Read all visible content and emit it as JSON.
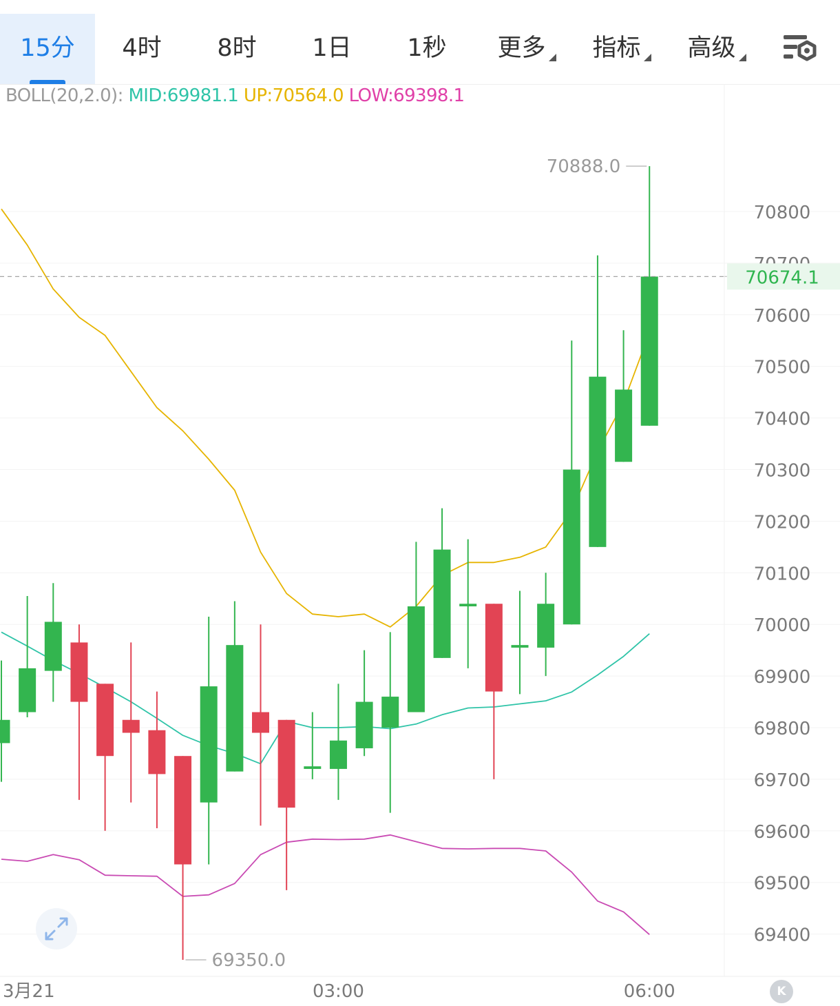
{
  "tabs": [
    {
      "label": "15分",
      "active": true,
      "dropdown": false
    },
    {
      "label": "4时",
      "active": false,
      "dropdown": false
    },
    {
      "label": "8时",
      "active": false,
      "dropdown": false
    },
    {
      "label": "1日",
      "active": false,
      "dropdown": false
    },
    {
      "label": "1秒",
      "active": false,
      "dropdown": false
    },
    {
      "label": "更多",
      "active": false,
      "dropdown": true
    },
    {
      "label": "指标",
      "active": false,
      "dropdown": true
    },
    {
      "label": "高级",
      "active": false,
      "dropdown": true
    }
  ],
  "settings_icon": "chart-settings-icon",
  "boll": {
    "label": "BOLL(20,2.0):",
    "mid": "MID:69981.1",
    "up": "UP:70564.0",
    "low": "LOW:69398.1"
  },
  "colors": {
    "up": "#33b54f",
    "down": "#e24454",
    "upper_band": "#e6b400",
    "middle_band": "#2fc4a8",
    "lower_band": "#c94ab3",
    "active_tab": "#1e7ee6",
    "price_label": "#2fb54f"
  },
  "chart_data": {
    "type": "candlestick",
    "title": "",
    "ylim": [
      69280,
      70990
    ],
    "y_ticks": [
      70800,
      70700,
      70600,
      70500,
      70400,
      70300,
      70200,
      70100,
      70000,
      69900,
      69800,
      69700,
      69600,
      69500,
      69400
    ],
    "x_labels": [
      {
        "index": 0,
        "label": "3月21"
      },
      {
        "index": 13,
        "label": "03:00"
      },
      {
        "index": 25,
        "label": "06:00"
      }
    ],
    "current_price": "70674.1",
    "max_label": "70888.0",
    "min_label": "69350.0",
    "max_index": 25,
    "min_index": 7,
    "candles": [
      {
        "o": 69770,
        "h": 69930,
        "l": 69695,
        "c": 69815
      },
      {
        "o": 69830,
        "h": 70055,
        "l": 69820,
        "c": 69915
      },
      {
        "o": 69910,
        "h": 70080,
        "l": 69850,
        "c": 70005
      },
      {
        "o": 69965,
        "h": 70000,
        "l": 69660,
        "c": 69850
      },
      {
        "o": 69885,
        "h": 69885,
        "l": 69600,
        "c": 69745
      },
      {
        "o": 69815,
        "h": 69965,
        "l": 69655,
        "c": 69790
      },
      {
        "o": 69795,
        "h": 69870,
        "l": 69605,
        "c": 69710
      },
      {
        "o": 69745,
        "h": 69745,
        "l": 69350,
        "c": 69535
      },
      {
        "o": 69655,
        "h": 70015,
        "l": 69535,
        "c": 69880
      },
      {
        "o": 69715,
        "h": 70045,
        "l": 69715,
        "c": 69960
      },
      {
        "o": 69830,
        "h": 70000,
        "l": 69610,
        "c": 69790
      },
      {
        "o": 69815,
        "h": 69815,
        "l": 69485,
        "c": 69645
      },
      {
        "o": 69720,
        "h": 69830,
        "l": 69700,
        "c": 69725
      },
      {
        "o": 69720,
        "h": 69885,
        "l": 69660,
        "c": 69775
      },
      {
        "o": 69760,
        "h": 69950,
        "l": 69745,
        "c": 69850
      },
      {
        "o": 69800,
        "h": 69985,
        "l": 69635,
        "c": 69860
      },
      {
        "o": 69830,
        "h": 70160,
        "l": 69830,
        "c": 70035
      },
      {
        "o": 69935,
        "h": 70225,
        "l": 69935,
        "c": 70145
      },
      {
        "o": 70035,
        "h": 70165,
        "l": 69915,
        "c": 70040
      },
      {
        "o": 70040,
        "h": 70040,
        "l": 69700,
        "c": 69870
      },
      {
        "o": 69955,
        "h": 70065,
        "l": 69865,
        "c": 69960
      },
      {
        "o": 69955,
        "h": 70100,
        "l": 69900,
        "c": 70040
      },
      {
        "o": 70000,
        "h": 70550,
        "l": 70000,
        "c": 70300
      },
      {
        "o": 70150,
        "h": 70715,
        "l": 70150,
        "c": 70480
      },
      {
        "o": 70315,
        "h": 70570,
        "l": 70315,
        "c": 70455
      },
      {
        "o": 70385,
        "h": 70888,
        "l": 70385,
        "c": 70674
      }
    ],
    "series": [
      {
        "name": "UP",
        "values": [
          70805,
          70735,
          70650,
          70595,
          70560,
          70490,
          70420,
          70375,
          70320,
          70260,
          70140,
          70060,
          70020,
          70015,
          70020,
          69995,
          70035,
          70095,
          70120,
          70120,
          70130,
          70150,
          70220,
          70335,
          70430,
          70565
        ]
      },
      {
        "name": "MID",
        "values": [
          69985,
          69958,
          69930,
          69905,
          69878,
          69850,
          69818,
          69785,
          69765,
          69750,
          69730,
          69812,
          69800,
          69800,
          69802,
          69798,
          69807,
          69825,
          69838,
          69840,
          69846,
          69852,
          69869,
          69902,
          69938,
          69982
        ]
      },
      {
        "name": "LOW",
        "values": [
          69545,
          69541,
          69554,
          69544,
          69514,
          69513,
          69512,
          69473,
          69476,
          69498,
          69554,
          69578,
          69584,
          69583,
          69584,
          69592,
          69579,
          69566,
          69565,
          69566,
          69566,
          69561,
          69520,
          69464,
          69443,
          69399
        ]
      }
    ]
  }
}
